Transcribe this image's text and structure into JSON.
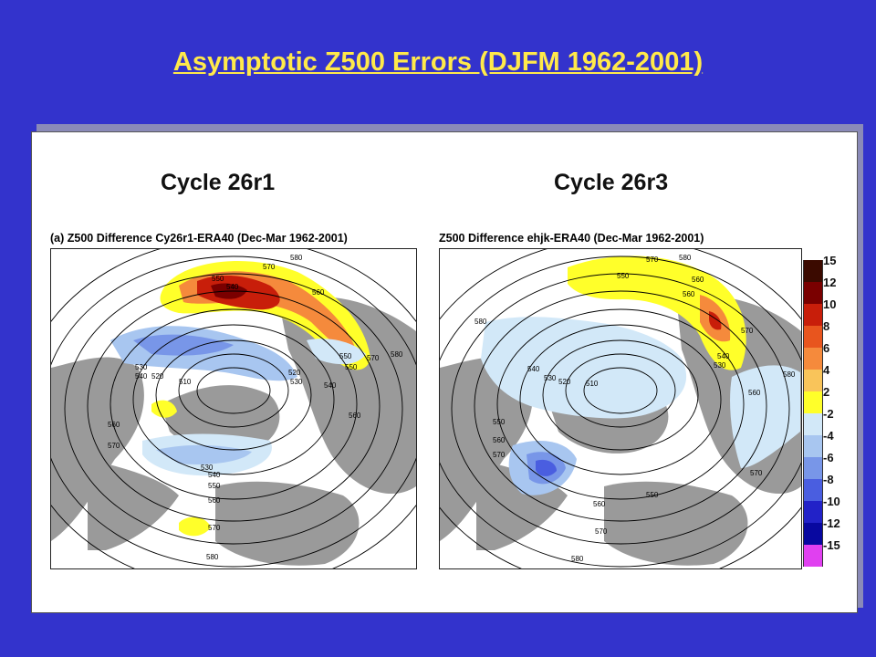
{
  "slide": {
    "title": "Asymptotic Z500 Errors (DJFM 1962-2001)"
  },
  "left_panel": {
    "heading": "Cycle 26r1",
    "map_title": "(a) Z500 Difference Cy26r1-ERA40 (Dec-Mar 1962-2001)",
    "contour_labels": [
      "580",
      "570",
      "560",
      "550",
      "540",
      "530",
      "520",
      "510",
      "540",
      "530",
      "520",
      "550",
      "560",
      "570",
      "580",
      "540",
      "550",
      "530",
      "560",
      "570",
      "580",
      "560",
      "570",
      "550",
      "540"
    ]
  },
  "right_panel": {
    "heading": "Cycle 26r3",
    "map_title": "Z500 Difference ehjk-ERA40 (Dec-Mar 1962-2001)",
    "contour_labels": [
      "580",
      "570",
      "560",
      "550",
      "540",
      "530",
      "520",
      "510",
      "580",
      "570",
      "560",
      "550",
      "540",
      "530",
      "560",
      "570",
      "580",
      "560",
      "550",
      "570",
      "580",
      "560",
      "570"
    ]
  },
  "legend": {
    "labels": [
      "15",
      "12",
      "10",
      "8",
      "6",
      "4",
      "2",
      "-2",
      "-4",
      "-6",
      "-8",
      "-10",
      "-12",
      "-15"
    ],
    "colors": [
      "#3b0a00",
      "#7a0000",
      "#c81e0a",
      "#e8551e",
      "#f58a3c",
      "#f9c45a",
      "#ffff2a",
      "#d2e8f8",
      "#a8c6f0",
      "#7896e8",
      "#4a5ee0",
      "#2222c8",
      "#0808a0",
      "#e040f0"
    ]
  }
}
